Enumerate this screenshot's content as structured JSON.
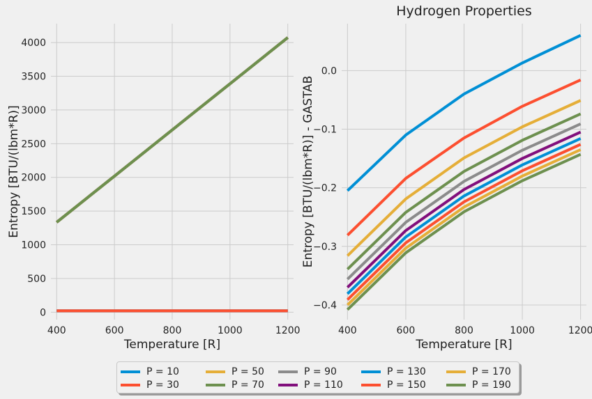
{
  "chart_data": [
    {
      "type": "line",
      "title": "",
      "xlabel": "Temperature [R]",
      "ylabel": "Entropy [BTU/(lbm*R)]",
      "xlim": [
        380,
        1220
      ],
      "ylim": [
        -110,
        4280
      ],
      "xticks": [
        400,
        600,
        800,
        1000,
        1200
      ],
      "yticks": [
        0,
        500,
        1000,
        1500,
        2000,
        2500,
        3000,
        3500,
        4000
      ],
      "grid": true,
      "x": [
        400,
        600,
        800,
        1000,
        1200
      ],
      "series": [
        {
          "name": "P = 10",
          "values": [
            1334,
            2019,
            2704,
            3389,
            4074
          ]
        },
        {
          "name": "P = 30",
          "values": [
            20,
            20,
            20,
            20,
            20
          ]
        },
        {
          "name": "P = 50",
          "values": [
            1334,
            2019,
            2704,
            3389,
            4074
          ]
        },
        {
          "name": "P = 70",
          "values": [
            1334,
            2019,
            2704,
            3389,
            4074
          ]
        },
        {
          "name": "P = 90",
          "values": [
            20,
            20,
            20,
            20,
            20
          ]
        },
        {
          "name": "P = 110",
          "values": [
            1334,
            2019,
            2704,
            3389,
            4074
          ]
        },
        {
          "name": "P = 130",
          "values": [
            20,
            20,
            20,
            20,
            20
          ]
        },
        {
          "name": "P = 150",
          "values": [
            20,
            20,
            20,
            20,
            20
          ]
        },
        {
          "name": "P = 170",
          "values": [
            1334,
            2019,
            2704,
            3389,
            4074
          ]
        },
        {
          "name": "P = 190",
          "values": [
            1334,
            2019,
            2704,
            3389,
            4074
          ]
        }
      ]
    },
    {
      "type": "line",
      "title": "Hydrogen Properties",
      "xlabel": "Temperature [R]",
      "ylabel": "Entropy [BTU/(lbm*R)] - GASTAB",
      "xlim": [
        380,
        1220
      ],
      "ylim": [
        -0.425,
        0.08
      ],
      "xticks": [
        400,
        600,
        800,
        1000,
        1200
      ],
      "yticks": [
        0.0,
        -0.1,
        -0.2,
        -0.3,
        -0.4
      ],
      "ytick_labels": [
        "0.0",
        "−0.1",
        "−0.2",
        "−0.3",
        "−0.4"
      ],
      "grid": true,
      "x": [
        400,
        600,
        800,
        1000,
        1200
      ],
      "series": [
        {
          "name": "P = 10",
          "values": [
            -0.205,
            -0.11,
            -0.04,
            0.013,
            0.06
          ]
        },
        {
          "name": "P = 30",
          "values": [
            -0.281,
            -0.184,
            -0.115,
            -0.061,
            -0.016
          ]
        },
        {
          "name": "P = 50",
          "values": [
            -0.316,
            -0.219,
            -0.149,
            -0.096,
            -0.051
          ]
        },
        {
          "name": "P = 70",
          "values": [
            -0.339,
            -0.242,
            -0.172,
            -0.119,
            -0.074
          ]
        },
        {
          "name": "P = 90",
          "values": [
            -0.356,
            -0.259,
            -0.189,
            -0.136,
            -0.091
          ]
        },
        {
          "name": "P = 110",
          "values": [
            -0.37,
            -0.273,
            -0.203,
            -0.15,
            -0.105
          ]
        },
        {
          "name": "P = 130",
          "values": [
            -0.381,
            -0.284,
            -0.214,
            -0.161,
            -0.116
          ]
        },
        {
          "name": "P = 150",
          "values": [
            -0.391,
            -0.294,
            -0.224,
            -0.171,
            -0.126
          ]
        },
        {
          "name": "P = 170",
          "values": [
            -0.4,
            -0.303,
            -0.233,
            -0.18,
            -0.135
          ]
        },
        {
          "name": "P = 190",
          "values": [
            -0.408,
            -0.311,
            -0.241,
            -0.188,
            -0.143
          ]
        }
      ]
    }
  ],
  "colors": [
    "#008fd5",
    "#fc4f30",
    "#e5ae38",
    "#6d904f",
    "#8b8b8b",
    "#810f7c",
    "#008fd5",
    "#fc4f30",
    "#e5ae38",
    "#6d904f"
  ],
  "legend": {
    "placement": "bottom-center",
    "labels": [
      "P = 10",
      "P = 30",
      "P = 50",
      "P = 70",
      "P = 90",
      "P = 110",
      "P = 130",
      "P = 150",
      "P = 170",
      "P = 190"
    ]
  }
}
